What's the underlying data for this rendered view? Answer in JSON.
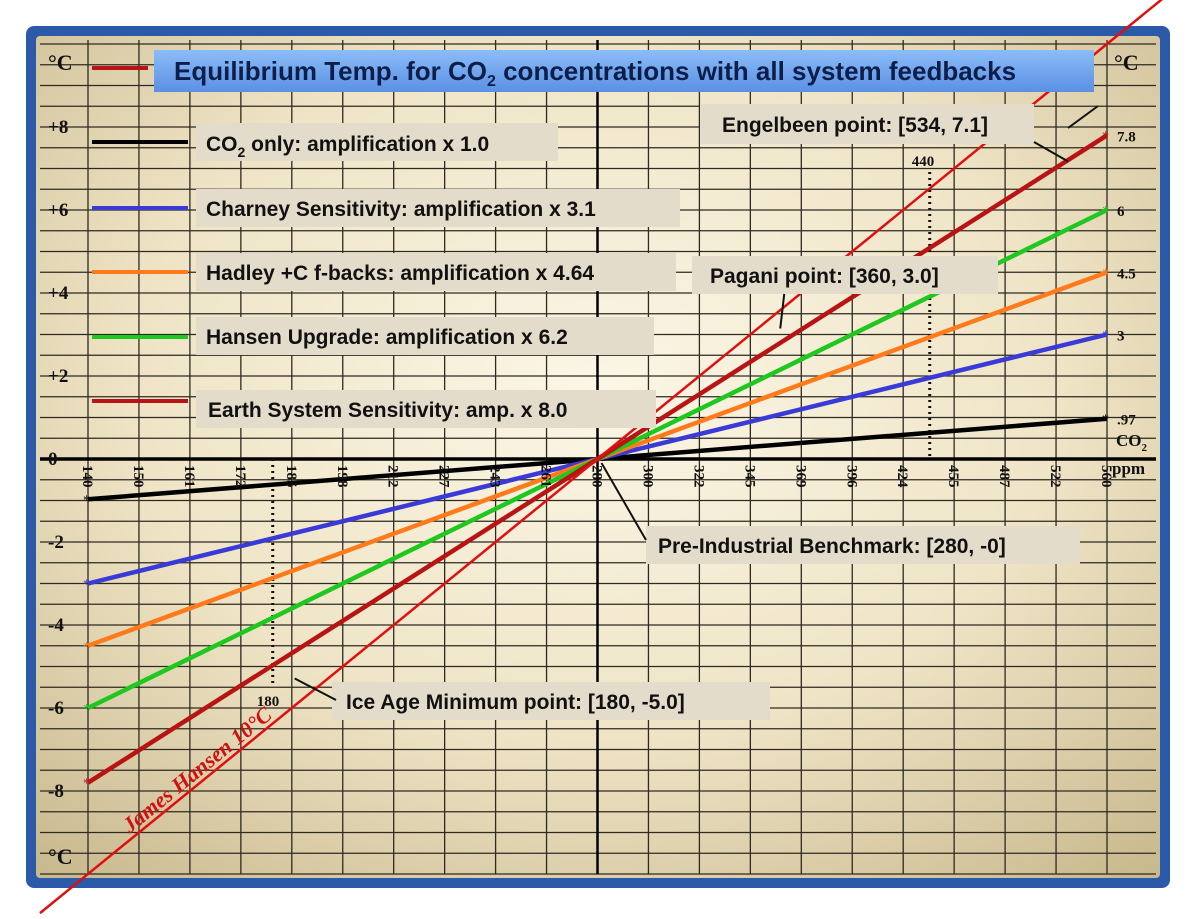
{
  "chart_data": {
    "type": "line",
    "title": "Equilibrium Temp. for CO",
    "title_sub": "2",
    "title_rest": " concentrations with  all system feedbacks",
    "unit_left": "°C",
    "unit_right": "°C",
    "unit_bottom": "°C",
    "x_unit_top": "CO",
    "x_unit_sub": "2",
    "x_unit_bottom": "ppm",
    "x_ticks": [
      "140",
      "150",
      "161",
      "172",
      "185",
      "198",
      "212",
      "227",
      "243",
      "261",
      "280",
      "300",
      "322",
      "345",
      "369",
      "396",
      "424",
      "455",
      "487",
      "522",
      "560"
    ],
    "y_ticks": [
      "+8",
      "+6",
      "+4",
      "+2",
      "0",
      "-2",
      "-4",
      "-6",
      "-8"
    ],
    "y_range": [
      -9,
      9
    ],
    "grid": true,
    "legend_placement": "left, inside plot",
    "series": [
      {
        "name": "CO2 only: amplification x 1.0",
        "label": "CO",
        "label_sub": "2",
        "label_rest": " only: amplification x 1.0",
        "color": "#000000",
        "x": [
          140,
          560
        ],
        "y": [
          -0.97,
          0.97
        ],
        "end_label": ".97"
      },
      {
        "name": "Charney Sensitivity: amplification x 3.1",
        "label": "Charney Sensitivity: amplification x 3.1",
        "color": "#3a3ad6",
        "x": [
          140,
          560
        ],
        "y": [
          -3.0,
          3.0
        ],
        "end_label": "3"
      },
      {
        "name": "Hadley +C f-backs: amplification x 4.64",
        "label": "Hadley +C f-backs: amplification x 4.64",
        "color": "#ff7a1a",
        "x": [
          140,
          560
        ],
        "y": [
          -4.5,
          4.5
        ],
        "end_label": "4.5"
      },
      {
        "name": "Hansen Upgrade: amplification x 6.2",
        "label": "Hansen Upgrade: amplification x 6.2",
        "color": "#1ec81e",
        "x": [
          140,
          560
        ],
        "y": [
          -6.0,
          6.0
        ],
        "end_label": "6"
      },
      {
        "name": "Earth System Sensitivity: amp. x 8.0",
        "label": "Earth System Sensitivity: amp. x 8.0",
        "color": "#b81414",
        "x": [
          140,
          560
        ],
        "y": [
          -7.8,
          7.8
        ],
        "end_label": "7.8"
      },
      {
        "name": "James Hansen 10°C",
        "label": "James Hansen 10°C",
        "color": "#e01010",
        "x": [
          140,
          560
        ],
        "y": [
          -10,
          10
        ]
      }
    ],
    "annotations": [
      {
        "text": "Engelbeen point: [534, 7.1]",
        "x": 534,
        "y": 7.1
      },
      {
        "text": "Pagani point: [360, 3.0]",
        "x": 360,
        "y": 3.0
      },
      {
        "text": "Pre-Industrial Benchmark: [280, -0]",
        "x": 280,
        "y": 0
      },
      {
        "text": "Ice Age Minimum point: [180, -5.0]",
        "x": 180,
        "y": -5.0
      }
    ],
    "reference_lines": [
      {
        "label": "440",
        "x": 440
      },
      {
        "label": "180",
        "x": 180
      }
    ],
    "colors": {
      "frame": "#2a5aa8",
      "paper": "#f3ead2",
      "grid": "#2e2a22",
      "title_box": "#6fa3ee",
      "label_box": "#e3dccb"
    }
  }
}
